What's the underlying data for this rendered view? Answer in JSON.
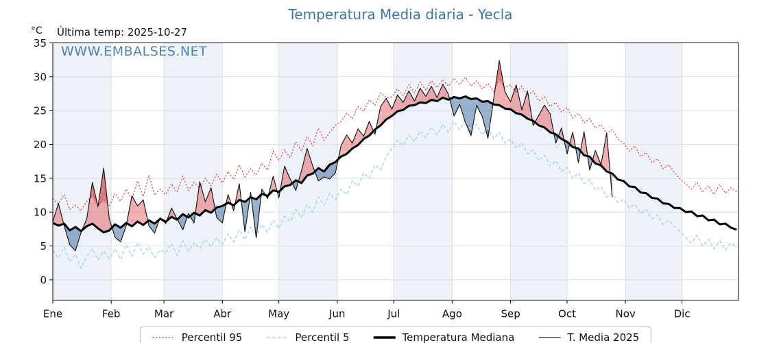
{
  "header": {
    "title": "Temperatura Media diaria - Yecla",
    "unit_label": "°C",
    "last_temp_label": "Última temp: 2025-10-27",
    "watermark": "WWW.EMBALSES.NET"
  },
  "colors": {
    "title": "#3a76ae",
    "watermark": "#3a76ae",
    "p95_line": "#e8413c",
    "p5_line": "#a8d2e8",
    "median_line": "#000000",
    "t2025_line": "#1a1a1a",
    "fill_above_median": "rgba(228,80,80,0.45)",
    "fill_below_median": "rgba(70,115,170,0.55)",
    "fill_above_p95": "rgba(200,35,45,0.35)",
    "fill_below_p5": "rgba(35,80,135,0.35)",
    "month_band": "#edf2f8",
    "grid": "#d9dee3",
    "axis": "#000000"
  },
  "legend": [
    {
      "label": "Percentil 95",
      "color": "#e8413c",
      "width": 1.4,
      "dash": "2 2.6"
    },
    {
      "label": "Percentil 5",
      "color": "#a8d2e8",
      "width": 1.4,
      "dash": "5 3"
    },
    {
      "label": "Temperatura Mediana",
      "color": "#000000",
      "width": 3.4,
      "dash": ""
    },
    {
      "label": "T. Media 2025",
      "color": "#222222",
      "width": 1.3,
      "dash": ""
    }
  ],
  "chart_data": {
    "type": "line",
    "title": "Temperatura Media diaria - Yecla",
    "xlabel": "",
    "ylabel": "°C",
    "x_tick_labels": [
      "Ene",
      "Feb",
      "Mar",
      "Abr",
      "May",
      "Jun",
      "Jul",
      "Ago",
      "Sep",
      "Oct",
      "Nov",
      "Dic"
    ],
    "month_start_days": [
      1,
      32,
      60,
      91,
      121,
      152,
      182,
      213,
      244,
      274,
      305,
      335
    ],
    "shaded_months": [
      "Ene",
      "Mar",
      "May",
      "Jul",
      "Sep",
      "Nov"
    ],
    "y_ticks": [
      0,
      5,
      10,
      15,
      20,
      25,
      30,
      35
    ],
    "ylim": [
      -3,
      35
    ],
    "grid": true,
    "legend_position": "bottom",
    "x_start_day": 1,
    "x_days_step": 3,
    "last_data_date": "2025-10-27",
    "series": [
      {
        "name": "Percentil 95",
        "style": "dotted",
        "values": [
          12.0,
          11.2,
          12.6,
          10.4,
          11.0,
          10.2,
          11.6,
          12.4,
          10.9,
          11.8,
          10.8,
          12.8,
          11.6,
          13.4,
          11.9,
          14.6,
          12.3,
          15.5,
          12.5,
          13.4,
          12.6,
          14.2,
          12.9,
          15.3,
          13.2,
          14.4,
          13.6,
          15.0,
          13.9,
          15.6,
          14.3,
          16.0,
          14.8,
          17.0,
          15.2,
          16.4,
          15.5,
          17.2,
          16.2,
          19.0,
          17.6,
          19.2,
          18.0,
          20.4,
          19.0,
          21.2,
          19.8,
          22.4,
          20.6,
          21.8,
          22.8,
          23.4,
          24.6,
          23.8,
          25.6,
          24.9,
          26.6,
          25.8,
          27.6,
          26.9,
          27.0,
          28.2,
          27.2,
          28.8,
          27.6,
          29.2,
          28.0,
          29.4,
          28.4,
          29.6,
          28.6,
          29.8,
          28.8,
          29.9,
          28.6,
          29.4,
          28.2,
          29.0,
          27.8,
          29.6,
          28.4,
          28.8,
          27.6,
          28.6,
          27.2,
          27.9,
          26.4,
          27.0,
          25.6,
          26.2,
          24.8,
          25.4,
          23.9,
          24.6,
          23.2,
          23.8,
          22.4,
          22.9,
          21.6,
          22.2,
          20.8,
          20.2,
          19.0,
          19.8,
          18.2,
          18.8,
          17.3,
          17.9,
          16.4,
          17.0,
          15.8,
          14.9,
          14.2,
          13.4,
          14.4,
          12.9,
          13.9,
          12.6,
          14.1,
          12.8,
          13.6,
          13.0
        ]
      },
      {
        "name": "Percentil 5",
        "style": "dashed",
        "values": [
          4.4,
          3.2,
          4.8,
          2.6,
          3.8,
          1.7,
          3.4,
          4.6,
          2.9,
          4.2,
          3.1,
          4.6,
          3.0,
          5.2,
          3.5,
          5.5,
          3.8,
          4.9,
          3.3,
          4.4,
          4.0,
          5.4,
          3.6,
          5.8,
          4.2,
          5.5,
          4.6,
          6.0,
          4.9,
          6.2,
          5.2,
          6.8,
          5.6,
          7.4,
          5.9,
          7.8,
          6.4,
          8.2,
          7.0,
          8.8,
          7.6,
          9.4,
          8.6,
          10.4,
          9.2,
          11.2,
          10.0,
          12.2,
          11.0,
          12.8,
          11.8,
          13.4,
          12.6,
          14.6,
          13.8,
          15.8,
          15.0,
          17.0,
          16.2,
          18.2,
          19.4,
          20.6,
          19.8,
          21.4,
          20.4,
          22.0,
          21.0,
          22.6,
          21.4,
          23.0,
          21.8,
          23.4,
          22.2,
          23.6,
          22.0,
          23.0,
          21.4,
          22.4,
          20.8,
          21.8,
          20.2,
          20.8,
          19.4,
          20.2,
          18.6,
          19.2,
          17.6,
          18.4,
          16.8,
          17.6,
          16.0,
          16.6,
          15.0,
          15.8,
          14.2,
          14.8,
          13.2,
          13.8,
          12.2,
          12.8,
          11.4,
          11.9,
          10.6,
          11.2,
          9.8,
          10.4,
          9.0,
          9.6,
          8.2,
          8.8,
          7.8,
          7.2,
          6.2,
          5.4,
          6.6,
          5.0,
          6.0,
          4.6,
          5.8,
          4.4,
          5.5,
          4.8
        ]
      },
      {
        "name": "Temperatura Mediana",
        "style": "solid-thick",
        "values": [
          8.4,
          8.0,
          8.3,
          7.3,
          7.8,
          7.2,
          7.9,
          8.3,
          7.6,
          7.0,
          7.3,
          8.2,
          7.7,
          8.4,
          7.9,
          8.6,
          8.1,
          8.8,
          8.3,
          9.0,
          8.6,
          9.3,
          8.9,
          9.7,
          9.2,
          9.9,
          9.5,
          10.3,
          9.9,
          10.7,
          10.9,
          11.4,
          11.0,
          11.8,
          11.5,
          12.2,
          11.9,
          12.7,
          12.4,
          13.2,
          13.0,
          13.8,
          14.0,
          14.7,
          14.3,
          15.4,
          15.7,
          16.5,
          16.0,
          17.0,
          17.4,
          18.2,
          18.6,
          19.4,
          19.9,
          20.8,
          21.3,
          22.2,
          22.8,
          23.7,
          24.2,
          24.9,
          25.1,
          25.7,
          25.8,
          26.2,
          26.1,
          26.6,
          26.4,
          26.9,
          26.6,
          27.0,
          26.8,
          27.1,
          26.7,
          26.8,
          26.3,
          26.4,
          25.9,
          25.8,
          25.3,
          25.2,
          24.6,
          24.4,
          23.8,
          23.5,
          22.8,
          22.5,
          21.8,
          21.5,
          20.8,
          20.4,
          19.6,
          19.4,
          18.4,
          18.2,
          17.2,
          16.9,
          16.0,
          15.7,
          14.8,
          14.6,
          13.8,
          13.7,
          12.9,
          12.8,
          12.1,
          12.0,
          11.3,
          11.2,
          10.6,
          10.6,
          10.0,
          10.1,
          9.4,
          9.5,
          8.8,
          8.9,
          8.2,
          8.3,
          7.7,
          7.4
        ]
      },
      {
        "name": "T. Media 2025",
        "style": "solid-thin",
        "values": [
          8.6,
          11.3,
          8.0,
          5.2,
          4.3,
          7.0,
          9.0,
          14.4,
          10.8,
          16.5,
          9.0,
          6.3,
          5.6,
          8.0,
          12.4,
          10.9,
          11.8,
          8.0,
          6.9,
          9.2,
          8.3,
          10.6,
          9.0,
          7.4,
          9.8,
          8.4,
          14.5,
          11.5,
          13.6,
          9.2,
          8.4,
          12.6,
          10.2,
          14.2,
          7.1,
          12.9,
          6.2,
          13.4,
          12.0,
          15.3,
          12.1,
          16.8,
          14.9,
          13.2,
          16.1,
          19.4,
          16.8,
          14.6,
          15.2,
          14.9,
          15.8,
          19.8,
          21.4,
          20.2,
          22.3,
          21.2,
          23.4,
          21.5,
          25.6,
          26.8,
          25.2,
          27.3,
          26.2,
          27.9,
          26.4,
          28.3,
          27.1,
          28.6,
          26.9,
          28.9,
          27.4,
          24.2,
          25.9,
          23.3,
          21.3,
          25.8,
          24.1,
          20.9,
          26.7,
          32.4,
          27.8,
          26.3,
          28.8,
          25.1,
          27.9,
          22.8,
          24.3,
          25.8,
          24.5,
          20.2,
          22.4,
          18.6,
          21.8,
          17.3,
          21.9,
          16.2,
          19.1,
          17.0,
          21.7,
          12.2,
          null,
          null,
          null,
          null,
          null,
          null,
          null,
          null,
          null,
          null,
          null,
          null,
          null,
          null,
          null,
          null,
          null,
          null,
          null,
          null,
          null,
          null,
          null
        ]
      }
    ],
    "fills": {
      "above_median": "red shading where T. Media 2025 > mediana",
      "below_median": "blue shading where T. Media 2025 < mediana"
    }
  }
}
